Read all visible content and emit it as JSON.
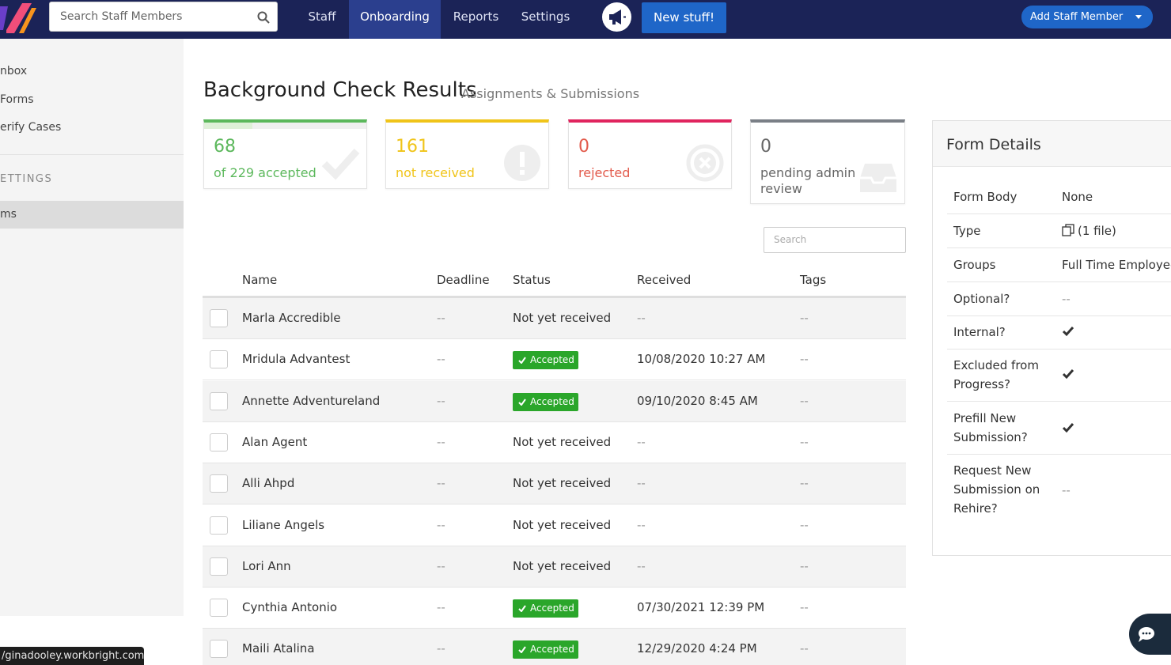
{
  "topnav": {
    "search_placeholder": "Search Staff Members",
    "items": [
      {
        "label": "Staff"
      },
      {
        "label": "Onboarding"
      },
      {
        "label": "Reports"
      },
      {
        "label": "Settings"
      }
    ],
    "new_stuff_label": "New stuff!",
    "add_staff_label": "Add Staff Member"
  },
  "sidebar": {
    "items": [
      {
        "label": "nbox"
      },
      {
        "label": "Forms"
      },
      {
        "label": "erify Cases"
      }
    ],
    "section_heading": "ETTINGS",
    "active_item": "ms"
  },
  "status_url": "/ginadooley.workbright.com",
  "page": {
    "title": "Background Check Results",
    "subtitle": "Assignments & Submissions"
  },
  "stats": [
    {
      "number": "68",
      "label": "of 229 accepted",
      "color": "#5cb85c",
      "progress": 0.297
    },
    {
      "number": "161",
      "label": "not received",
      "color": "#f0c419"
    },
    {
      "number": "0",
      "label": "rejected",
      "color": "#e0245e",
      "text_color": "#e25a4b"
    },
    {
      "number": "0",
      "label": "pending admin review",
      "color": "#7a7f86",
      "text_color": "#666"
    }
  ],
  "table": {
    "search_placeholder": "Search",
    "headers": {
      "name": "Name",
      "deadline": "Deadline",
      "status": "Status",
      "received": "Received",
      "tags": "Tags"
    },
    "rows": [
      {
        "name": "Marla Accredible",
        "deadline": "--",
        "status": "Not yet received",
        "received": "--",
        "tags": "--"
      },
      {
        "name": "Mridula Advantest",
        "deadline": "--",
        "status": "Accepted",
        "received": "10/08/2020 10:27 AM",
        "tags": "--"
      },
      {
        "name": "Annette Adventureland",
        "deadline": "--",
        "status": "Accepted",
        "received": "09/10/2020 8:45 AM",
        "tags": "--"
      },
      {
        "name": "Alan Agent",
        "deadline": "--",
        "status": "Not yet received",
        "received": "--",
        "tags": "--"
      },
      {
        "name": "Alli Ahpd",
        "deadline": "--",
        "status": "Not yet received",
        "received": "--",
        "tags": "--"
      },
      {
        "name": "Liliane Angels",
        "deadline": "--",
        "status": "Not yet received",
        "received": "--",
        "tags": "--"
      },
      {
        "name": "Lori Ann",
        "deadline": "--",
        "status": "Not yet received",
        "received": "--",
        "tags": "--"
      },
      {
        "name": "Cynthia Antonio",
        "deadline": "--",
        "status": "Accepted",
        "received": "07/30/2021 12:39 PM",
        "tags": "--"
      },
      {
        "name": "Maili Atalina",
        "deadline": "--",
        "status": "Accepted",
        "received": "12/29/2020 4:24 PM",
        "tags": "--"
      }
    ]
  },
  "form_details": {
    "title": "Form Details",
    "rows": [
      {
        "label": "Form Body",
        "value": "None"
      },
      {
        "label": "Type",
        "value": "(1 file)"
      },
      {
        "label": "Groups",
        "value": "Full Time Employees"
      },
      {
        "label": "Optional?",
        "value": "--"
      },
      {
        "label": "Internal?",
        "value": "check"
      },
      {
        "label": "Excluded from Progress?",
        "value": "check"
      },
      {
        "label": "Prefill New Submission?",
        "value": "check"
      },
      {
        "label": "Request New Submission on Rehire?",
        "value": "--"
      }
    ]
  },
  "colors": {
    "nav_bg": "#1b2357",
    "nav_active": "#2b3f8e",
    "primary_button": "#1f66c8",
    "accepted_badge": "#2aa62a"
  }
}
